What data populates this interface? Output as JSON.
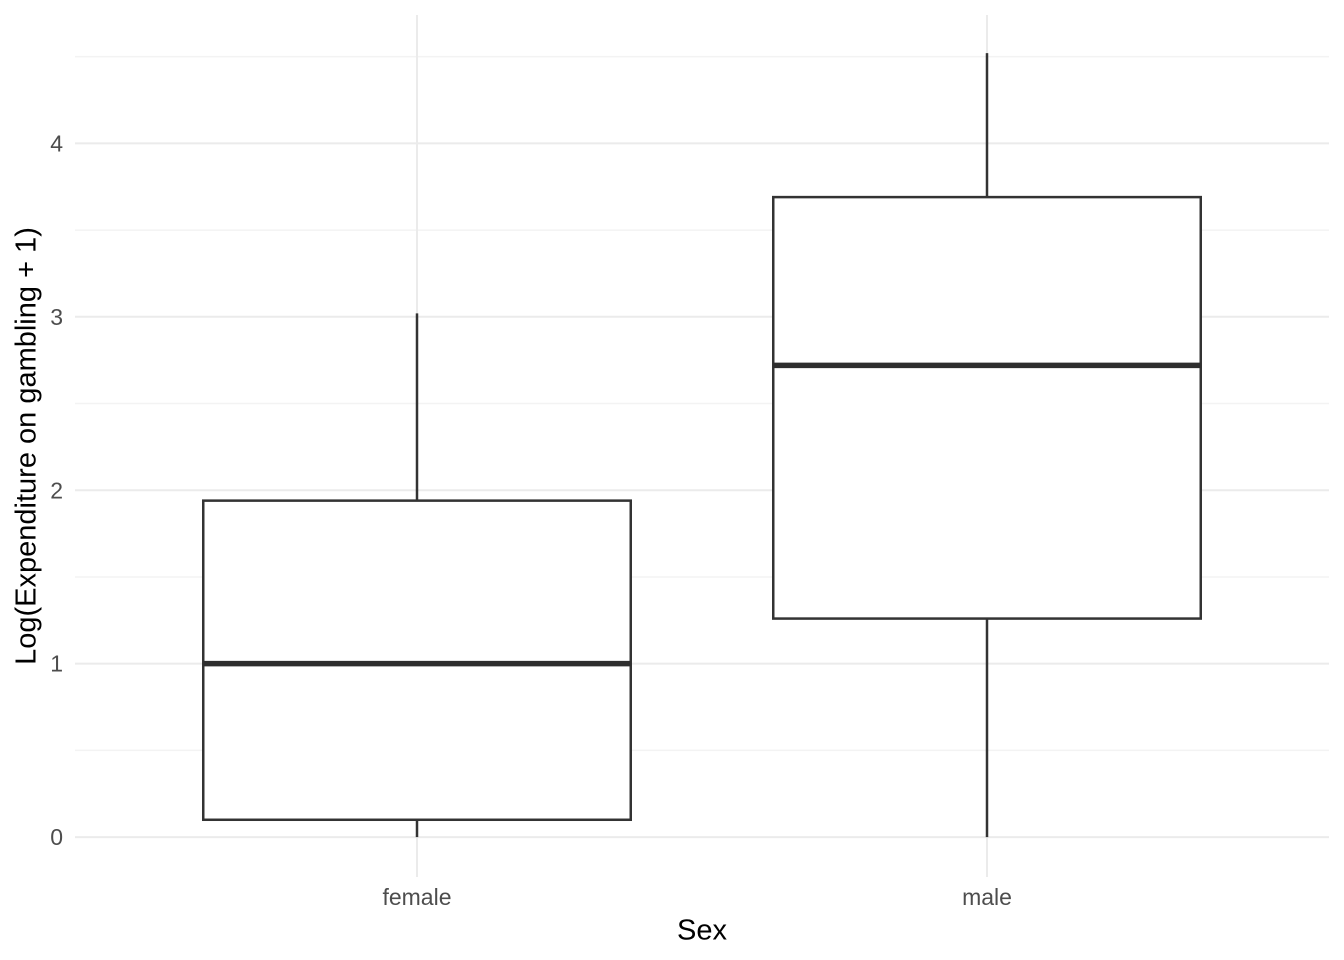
{
  "chart_data": {
    "type": "boxplot",
    "title": "",
    "xlabel": "Sex",
    "ylabel": "Log(Expenditure on gambling + 1)",
    "categories": [
      "female",
      "male"
    ],
    "series": [
      {
        "name": "female",
        "min": 0.0,
        "q1": 0.1,
        "median": 1.0,
        "q3": 1.94,
        "max": 3.02,
        "outliers": []
      },
      {
        "name": "male",
        "min": 0.0,
        "q1": 1.26,
        "median": 2.72,
        "q3": 3.69,
        "max": 4.52,
        "outliers": []
      }
    ],
    "yticks": [
      0,
      1,
      2,
      3,
      4
    ],
    "yticks_minor": [
      0.5,
      1.5,
      2.5,
      3.5,
      4.5
    ],
    "ylim": [
      -0.23,
      4.74
    ],
    "box_width_ratio": 0.75,
    "grid": "horizontal major+minor, vertical major at categories",
    "legend": "none",
    "colors": {
      "background": "#FFFFFF",
      "box_stroke": "#333333",
      "box_fill": "#FFFFFF",
      "median_stroke": "#2E2E2E",
      "grid_major": "#EBEBEB",
      "grid_minor": "#F3F3F3",
      "tick_label": "#4D4D4D",
      "axis_title": "#000000"
    }
  }
}
